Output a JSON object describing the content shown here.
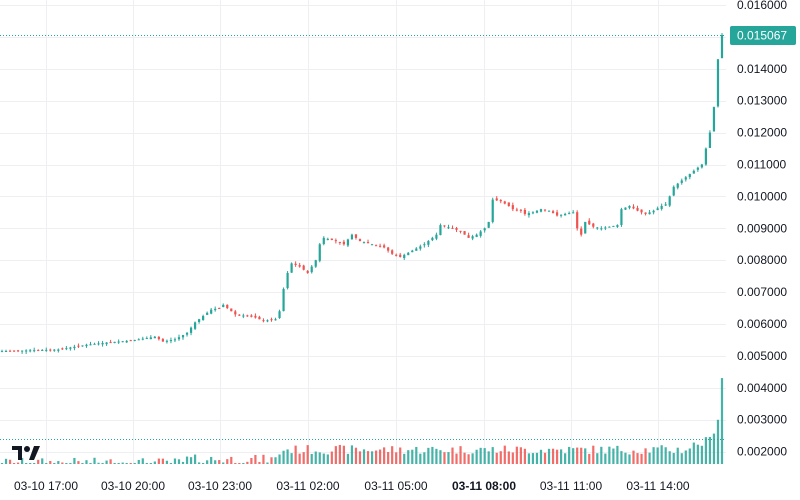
{
  "chart_data": {
    "type": "candlestick",
    "title": "",
    "xlabel": "",
    "ylabel": "",
    "ylim": [
      0.0015,
      0.0162
    ],
    "y_ticks": [
      "0.016000",
      "0.015000",
      "0.014000",
      "0.013000",
      "0.012000",
      "0.011000",
      "0.010000",
      "0.009000",
      "0.008000",
      "0.007000",
      "0.006000",
      "0.005000",
      "0.004000",
      "0.003000",
      "0.002000"
    ],
    "y_tick_values": [
      0.016,
      0.015,
      0.014,
      0.013,
      0.012,
      0.011,
      0.01,
      0.009,
      0.008,
      0.007,
      0.006,
      0.005,
      0.004,
      0.003,
      0.002
    ],
    "x_ticks": [
      {
        "label": "03-10 17:00",
        "bold": false
      },
      {
        "label": "03-10 20:00",
        "bold": false
      },
      {
        "label": "03-10 23:00",
        "bold": false
      },
      {
        "label": "03-11 02:00",
        "bold": false
      },
      {
        "label": "03-11 05:00",
        "bold": false
      },
      {
        "label": "03-11 08:00",
        "bold": true
      },
      {
        "label": "03-11 11:00",
        "bold": false
      },
      {
        "label": "03-11 14:00",
        "bold": false
      }
    ],
    "time_start": "03-10 16:10",
    "time_end": "03-11 17:25",
    "last_price": "0.015067",
    "last_price_value": 0.015067,
    "volume_marker_value": 0.00241,
    "price_path": [
      [
        0,
        0.00515
      ],
      [
        14,
        0.0052
      ],
      [
        21,
        0.00535
      ],
      [
        26,
        0.00542
      ],
      [
        32,
        0.00548
      ],
      [
        38,
        0.0056
      ],
      [
        40,
        0.00545
      ],
      [
        43,
        0.00552
      ],
      [
        46,
        0.00572
      ],
      [
        48,
        0.00605
      ],
      [
        50,
        0.00625
      ],
      [
        52,
        0.00645
      ],
      [
        54,
        0.0065
      ],
      [
        55,
        0.0066
      ],
      [
        57,
        0.0064
      ],
      [
        58,
        0.0063
      ],
      [
        61,
        0.00625
      ],
      [
        63,
        0.0062
      ],
      [
        64,
        0.00615
      ],
      [
        65,
        0.0061
      ],
      [
        68,
        0.00615
      ],
      [
        69,
        0.0064
      ],
      [
        70,
        0.0071
      ],
      [
        71,
        0.0076
      ],
      [
        72,
        0.0079
      ],
      [
        74,
        0.0078
      ],
      [
        76,
        0.0076
      ],
      [
        78,
        0.008
      ],
      [
        79,
        0.0085
      ],
      [
        80,
        0.0087
      ],
      [
        83,
        0.0086
      ],
      [
        85,
        0.0085
      ],
      [
        87,
        0.0088
      ],
      [
        89,
        0.0086
      ],
      [
        92,
        0.0085
      ],
      [
        95,
        0.0084
      ],
      [
        97,
        0.0082
      ],
      [
        99,
        0.0081
      ],
      [
        102,
        0.0083
      ],
      [
        105,
        0.0085
      ],
      [
        108,
        0.0088
      ],
      [
        109,
        0.0091
      ],
      [
        112,
        0.009
      ],
      [
        114,
        0.0089
      ],
      [
        116,
        0.0087
      ],
      [
        118,
        0.0088
      ],
      [
        120,
        0.009
      ],
      [
        121,
        0.0092
      ],
      [
        122,
        0.0099
      ],
      [
        124,
        0.00985
      ],
      [
        126,
        0.0097
      ],
      [
        127,
        0.0096
      ],
      [
        129,
        0.00955
      ],
      [
        130,
        0.00945
      ],
      [
        132,
        0.0095
      ],
      [
        134,
        0.0096
      ],
      [
        136,
        0.00955
      ],
      [
        138,
        0.0094
      ],
      [
        140,
        0.00945
      ],
      [
        142,
        0.0095
      ],
      [
        143,
        0.009
      ],
      [
        144,
        0.0088
      ],
      [
        145,
        0.0092
      ],
      [
        147,
        0.00905
      ],
      [
        149,
        0.009
      ],
      [
        151,
        0.00905
      ],
      [
        153,
        0.0091
      ],
      [
        154,
        0.0096
      ],
      [
        156,
        0.0097
      ],
      [
        158,
        0.00955
      ],
      [
        160,
        0.00945
      ],
      [
        162,
        0.00955
      ],
      [
        164,
        0.0097
      ],
      [
        165,
        0.00975
      ],
      [
        166,
        0.01
      ],
      [
        167,
        0.0103
      ],
      [
        168,
        0.0104
      ],
      [
        170,
        0.0106
      ],
      [
        171,
        0.0107
      ],
      [
        172,
        0.0108
      ],
      [
        174,
        0.011
      ],
      [
        175,
        0.0115
      ],
      [
        176,
        0.012
      ],
      [
        177,
        0.0128
      ],
      [
        178,
        0.0143
      ],
      [
        179,
        0.01506
      ]
    ],
    "volume_path": [
      [
        0,
        0.0016
      ],
      [
        45,
        0.0016
      ],
      [
        46,
        0.0017
      ],
      [
        68,
        0.0017
      ],
      [
        69,
        0.0019
      ],
      [
        70,
        0.002
      ],
      [
        170,
        0.002
      ],
      [
        171,
        0.0021
      ],
      [
        176,
        0.0023
      ],
      [
        178,
        0.003
      ],
      [
        179,
        0.0043
      ]
    ],
    "colors": {
      "up": "#26a69a",
      "down": "#ef5350",
      "price_line": "#26a69a",
      "price_tag_bg": "#26a69a",
      "grid": "#eeeff3",
      "text": "#131722"
    },
    "grid": true
  }
}
